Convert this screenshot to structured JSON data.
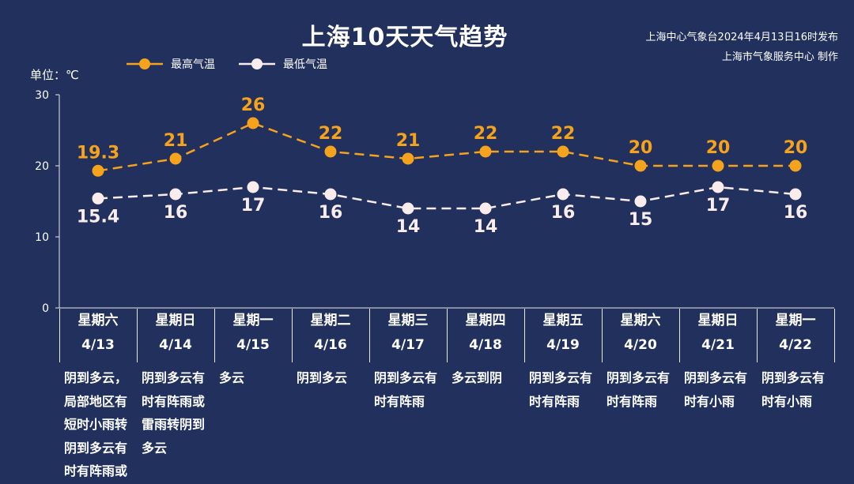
{
  "title": "上海10天天气趋势",
  "source": {
    "line1": "上海中心气象台2024年4月13日16时发布",
    "line2": "上海市气象服务中心 制作"
  },
  "unit_label": "单位：℃",
  "colors": {
    "background": "#22305e",
    "high": "#f5a31c",
    "low": "#f8ecec",
    "text": "#ffffff"
  },
  "legend": {
    "high": "最高气温",
    "low": "最低气温"
  },
  "days": [
    {
      "weekday": "星期六",
      "date": "4/13",
      "desc": "阴到多云，局部地区有短时小雨转阴到多云有时有阵雨或"
    },
    {
      "weekday": "星期日",
      "date": "4/14",
      "desc": "阴到多云有时有阵雨或雷雨转阴到多云"
    },
    {
      "weekday": "星期一",
      "date": "4/15",
      "desc": "多云"
    },
    {
      "weekday": "星期二",
      "date": "4/16",
      "desc": "阴到多云"
    },
    {
      "weekday": "星期三",
      "date": "4/17",
      "desc": "阴到多云有时有阵雨"
    },
    {
      "weekday": "星期四",
      "date": "4/18",
      "desc": "多云到阴"
    },
    {
      "weekday": "星期五",
      "date": "4/19",
      "desc": "阴到多云有时有阵雨"
    },
    {
      "weekday": "星期六",
      "date": "4/20",
      "desc": "阴到多云有时有阵雨"
    },
    {
      "weekday": "星期日",
      "date": "4/21",
      "desc": "阴到多云有时有小雨"
    },
    {
      "weekday": "星期一",
      "date": "4/22",
      "desc": "阴到多云有时有小雨"
    }
  ],
  "chart_data": {
    "type": "line",
    "title": "上海10天天气趋势",
    "ylabel": "单位：℃",
    "ylim": [
      0,
      30
    ],
    "yticks": [
      0,
      10,
      20,
      30
    ],
    "grid": false,
    "legend_position": "top-left",
    "categories": [
      "4/13",
      "4/14",
      "4/15",
      "4/16",
      "4/17",
      "4/18",
      "4/19",
      "4/20",
      "4/21",
      "4/22"
    ],
    "series": [
      {
        "name": "最高气温",
        "values": [
          19.3,
          21,
          26,
          22,
          21,
          22,
          22,
          20,
          20,
          20
        ],
        "color": "#f5a31c",
        "dashed": true
      },
      {
        "name": "最低气温",
        "values": [
          15.4,
          16,
          17,
          16,
          14,
          14,
          16,
          15,
          17,
          16
        ],
        "color": "#f8ecec",
        "dashed": true
      }
    ]
  }
}
